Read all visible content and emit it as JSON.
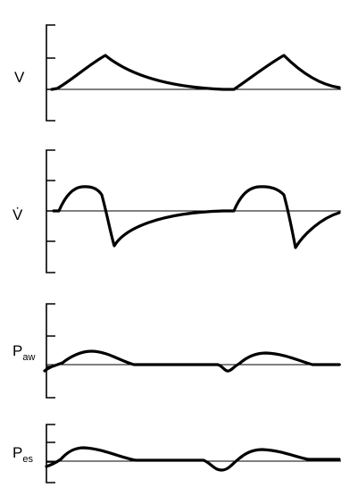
{
  "panels": [
    {
      "label": "V"
    },
    {
      "label": "V̇"
    },
    {
      "label": "P",
      "subscript": "aw"
    },
    {
      "label": "P",
      "subscript": "es"
    }
  ]
}
